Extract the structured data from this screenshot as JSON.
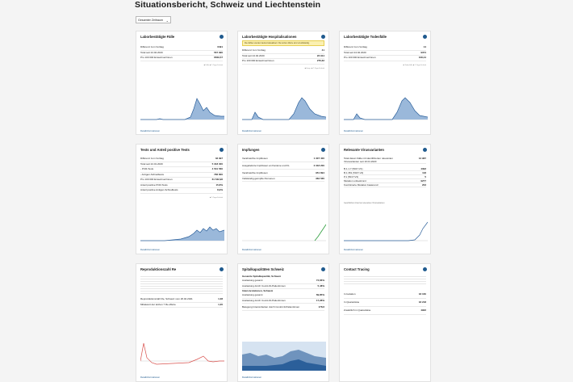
{
  "page": {
    "title": "Situationsbericht, Schweiz und Liechtenstein"
  },
  "period_select": {
    "value": "Gesamter Zeitraum"
  },
  "more_link": "Detailinformationen",
  "cards": {
    "cases": {
      "title": "Laborbestätigte Fälle",
      "rows": [
        {
          "label": "Differenz zum Vorttag",
          "value": "6491"
        },
        {
          "label": "Total seit 24.02.2020",
          "value": "567 990"
        },
        {
          "label": "Pro 100 000 Einwohner/innen",
          "value": "6569,57"
        }
      ],
      "legend": "■ Fälle  ■ 7-Tage-Schnitt"
    },
    "hosp": {
      "title": "Laborbestätigte Hospitalisationen",
      "warning": "Die Zahlen werden laufend aktualisiert. Die letzten Werte sind unvollständig.",
      "rows": [
        {
          "label": "Differenz zum Vorttag",
          "value": "41"
        },
        {
          "label": "Total seit 24.02.2020",
          "value": "23 914"
        },
        {
          "label": "Pro 100 000 Einwohner/innen",
          "value": "276,62"
        }
      ],
      "legend": "■ Hosp.  ■ 7-Tage-Schnitt"
    },
    "deaths": {
      "title": "Laborbestätigte Todesfälle",
      "rows": [
        {
          "label": "Differenz zum Vorttag",
          "value": "14"
        },
        {
          "label": "Total seit 24.02.2020",
          "value": "9374"
        },
        {
          "label": "Pro 100 000 Einwohner/innen",
          "value": "108,44"
        }
      ],
      "legend": "■ Todesfälle  ■ 7-Tage-Schnitt"
    },
    "tests": {
      "title": "Tests und Anteil positive Tests",
      "rows": [
        {
          "label": "Differenz zum Vorttag",
          "value": "32 997"
        },
        {
          "label": "Total seit 24.01.2020",
          "value": "5 318 300"
        },
        {
          "label": "- PCR-Tests",
          "value": "4 531 560"
        },
        {
          "label": "- Antigen-Schnelltests",
          "value": "786 800"
        },
        {
          "label": "Pro 100 000 Einwohner/innen",
          "value": "61 532,96"
        },
        {
          "label": "Anteil positive PCR-Tests",
          "value": "15,8%"
        },
        {
          "label": "Anteil positive Antigen-Schnelltests",
          "value": "8,9%"
        }
      ],
      "legend": "■ 7-Tage-Schnitt"
    },
    "vacc": {
      "title": "Impfungen",
      "rows": [
        {
          "label": "Verabreichte Impfdosen",
          "value": "1 307 400"
        },
        {
          "label": "Ausgelieferte Impfdosen an Kantone und FL",
          "value": "2 318 200"
        },
        {
          "label": "Verabreichte Impfdosen",
          "value": "951 894"
        },
        {
          "label": "Vollständig geimpfte Personen",
          "value": "362 565"
        }
      ]
    },
    "variants": {
      "title": "Relevante Virusvarianten",
      "rows": [
        {
          "label": "Total davon Fälle mit identifizierten relevanten Virusvarianten seit 10.01.2020",
          "value": "13 987"
        },
        {
          "label": "B.1.1.7 (501Y.V1)",
          "value": "4393"
        },
        {
          "label": "B.1.351 (501Y.V2)",
          "value": "118"
        },
        {
          "label": "P.1 (501Y.V3)",
          "value": "5"
        },
        {
          "label": "Mutation unbestimmt",
          "value": "9277"
        },
        {
          "label": "Kombinierte Mutation basierend",
          "value": "203"
        }
      ],
      "chart_label": "Geschätzter Anteil an relevanten Virusvarianten"
    },
    "repro": {
      "title": "Reproduktionszahl Re",
      "rows": [
        {
          "label": "Reproduktionszahl Re, Schweiz vom 26.02.2021",
          "value": "1,08"
        },
        {
          "label": "Mittelwert der letzten 7 Re-Werte",
          "value": "1,00"
        }
      ]
    },
    "beds": {
      "title": "Spitalkapazitäten Schweiz",
      "sections": [
        {
          "heading": "Gesamte Spitalkapazität, Schweiz",
          "rows": [
            {
              "label": "Auslastung gesamt",
              "value": "74,66%"
            },
            {
              "label": "Auslastung durch Covid-19-Patientinnen",
              "value": "5,48%"
            }
          ]
        },
        {
          "heading": "Intensivstationen, Schweiz",
          "rows": [
            {
              "label": "Auslastung gesamt",
              "value": "69,85%"
            },
            {
              "label": "Auslastung durch Covid-19-Patientinnen",
              "value": "17,28%"
            }
          ]
        },
        {
          "heading": "",
          "rows": [
            {
              "label": "Belegung Intensivbetten durch Covid-19-Patientinnen",
              "value": "178,6"
            }
          ]
        }
      ]
    },
    "tracing": {
      "title": "Contact Tracing",
      "rows": [
        {
          "label": "In Isolation",
          "value": "18 160"
        },
        {
          "label": "In Quarantäne",
          "value": "18 218"
        },
        {
          "label": "Zusätzlich in Quarantäne",
          "value": "4922"
        }
      ]
    }
  },
  "colors": {
    "accent": "#1f5a8e",
    "area": "#9ab8da",
    "line": "#2b5f9a",
    "green": "#2a9d3a",
    "red": "#d9534f"
  }
}
